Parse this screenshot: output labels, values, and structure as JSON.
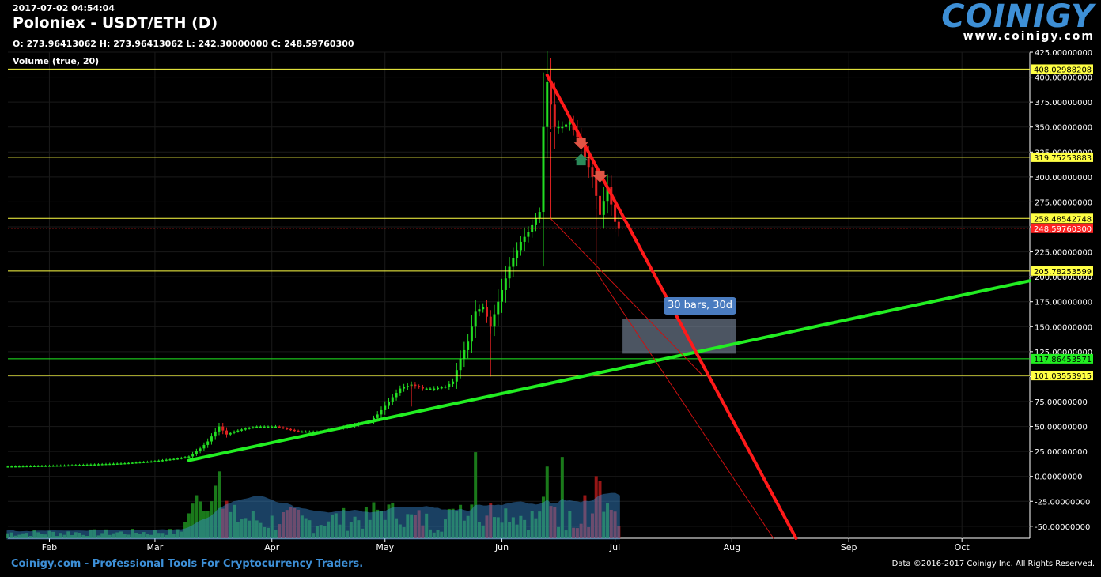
{
  "header": {
    "timestamp": "2017-07-02 04:54:04",
    "title": "Poloniex - USDT/ETH (D)",
    "ohlc": "O: 273.96413062 H: 273.96413062 L: 242.30000000 C: 248.59760300",
    "volume_label": "Volume (true, 20)"
  },
  "logo": {
    "name": "COINIGY",
    "url": "www.coinigy.com"
  },
  "footer": {
    "left": "Coinigy.com - Professional Tools For Cryptocurrency Traders.",
    "right": "Data ©2016-2017 Coinigy Inc. All Rights Reserved."
  },
  "measure_label": "30 bars, 30d",
  "colors": {
    "up": "#22dd22",
    "down": "#dd2222",
    "hline": "#ffff44",
    "trend_green": "#22ee22",
    "trend_red": "#ff1a1a",
    "volume_ma": "#3a8fd9"
  },
  "chart_data": {
    "type": "candlestick",
    "x_axis": {
      "range": [
        "2017-01-21",
        "2017-10-19"
      ],
      "ticks": [
        "Feb",
        "Mar",
        "Apr",
        "May",
        "Jun",
        "Jul",
        "Aug",
        "Sep",
        "Oct"
      ]
    },
    "y_axis": {
      "range": [
        -62,
        425
      ],
      "ticks": [
        "425.00000000",
        "400.00000000",
        "375.00000000",
        "350.00000000",
        "325.00000000",
        "300.00000000",
        "275.00000000",
        "250.00000000",
        "225.00000000",
        "200.00000000",
        "175.00000000",
        "150.00000000",
        "125.00000000",
        "100.00000000",
        "75.00000000",
        "50.00000000",
        "25.00000000",
        "0.00000000",
        "-25.00000000",
        "-50.00000000"
      ]
    },
    "horizontal_lines": [
      {
        "value": 408.02988208,
        "label": "408.02988208",
        "color": "#ffff44"
      },
      {
        "value": 319.75253883,
        "label": "319.75253883",
        "color": "#ffff44"
      },
      {
        "value": 258.48542748,
        "label": "258.48542748",
        "color": "#ffff44"
      },
      {
        "value": 248.597603,
        "label": "248.59760300",
        "color": "#ff2222"
      },
      {
        "value": 205.78253599,
        "label": "205.78253599",
        "color": "#ffff44"
      },
      {
        "value": 117.86453571,
        "label": "117.86453571",
        "color": "#22ee22"
      },
      {
        "value": 101.03553915,
        "label": "101.03553915",
        "color": "#ffff44"
      }
    ],
    "keyframes": [
      [
        "2017-01-21",
        10
      ],
      [
        "2017-02-05",
        11
      ],
      [
        "2017-02-20",
        13
      ],
      [
        "2017-02-28",
        15
      ],
      [
        "2017-03-07",
        18
      ],
      [
        "2017-03-10",
        20
      ],
      [
        "2017-03-13",
        28
      ],
      [
        "2017-03-15",
        35
      ],
      [
        "2017-03-17",
        45
      ],
      [
        "2017-03-18",
        50
      ],
      [
        "2017-03-20",
        42
      ],
      [
        "2017-03-22",
        45
      ],
      [
        "2017-03-25",
        48
      ],
      [
        "2017-03-28",
        50
      ],
      [
        "2017-04-02",
        50
      ],
      [
        "2017-04-08",
        45
      ],
      [
        "2017-04-14",
        45
      ],
      [
        "2017-04-21",
        50
      ],
      [
        "2017-04-27",
        55
      ],
      [
        "2017-04-29",
        62
      ],
      [
        "2017-05-02",
        75
      ],
      [
        "2017-05-05",
        88
      ],
      [
        "2017-05-08",
        92
      ],
      [
        "2017-05-11",
        88
      ],
      [
        "2017-05-14",
        88
      ],
      [
        "2017-05-17",
        90
      ],
      [
        "2017-05-19",
        95
      ],
      [
        "2017-05-21",
        118
      ],
      [
        "2017-05-23",
        135
      ],
      [
        "2017-05-25",
        165
      ],
      [
        "2017-05-27",
        170
      ],
      [
        "2017-05-29",
        150
      ],
      [
        "2017-05-31",
        175
      ],
      [
        "2017-06-03",
        210
      ],
      [
        "2017-06-06",
        235
      ],
      [
        "2017-06-08",
        245
      ],
      [
        "2017-06-11",
        265
      ],
      [
        "2017-06-12",
        350
      ],
      [
        "2017-06-13",
        395
      ],
      [
        "2017-06-15",
        350
      ],
      [
        "2017-06-17",
        350
      ],
      [
        "2017-06-19",
        355
      ],
      [
        "2017-06-21",
        340
      ],
      [
        "2017-06-23",
        320
      ],
      [
        "2017-06-25",
        300
      ],
      [
        "2017-06-27",
        262
      ],
      [
        "2017-06-29",
        290
      ],
      [
        "2017-07-01",
        255
      ],
      [
        "2017-07-02",
        248
      ]
    ],
    "volume_spikes": [
      [
        "2017-03-17",
        0.55
      ],
      [
        "2017-03-18",
        0.7
      ],
      [
        "2017-03-12",
        0.45
      ],
      [
        "2017-05-25",
        0.9
      ],
      [
        "2017-06-13",
        0.75
      ],
      [
        "2017-06-23",
        0.45
      ],
      [
        "2017-06-26",
        0.65
      ],
      [
        "2017-06-27",
        0.6
      ],
      [
        "2017-06-17",
        0.85
      ]
    ],
    "trendlines": [
      {
        "color": "#22ee22",
        "from": [
          "2017-03-10",
          16
        ],
        "to": [
          "2017-10-19",
          196
        ]
      },
      {
        "color": "#ff1a1a",
        "from": [
          "2017-06-13",
          402
        ],
        "to": [
          "2017-08-18",
          -62
        ]
      },
      {
        "color": "#cc1111",
        "from": [
          "2017-06-14",
          258
        ],
        "to": [
          "2017-07-24",
          102
        ]
      },
      {
        "color": "#cc1111",
        "from": [
          "2017-06-26",
          205
        ],
        "to": [
          "2017-08-12",
          -62
        ]
      }
    ],
    "measure_box": {
      "from": [
        "2017-07-03",
        158
      ],
      "to": [
        "2017-08-02",
        123
      ]
    },
    "markers": [
      {
        "type": "sell",
        "at": [
          "2017-06-22",
          333
        ]
      },
      {
        "type": "buy",
        "at": [
          "2017-06-22",
          318
        ]
      },
      {
        "type": "sell",
        "at": [
          "2017-06-27",
          300
        ]
      }
    ]
  }
}
